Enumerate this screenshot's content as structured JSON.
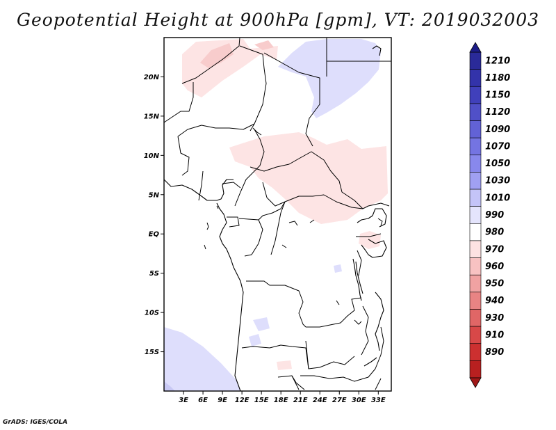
{
  "title": "Geopotential Height at 900hPa [gpm], VT: 2019032003",
  "credit": "GrADS: IGES/COLA",
  "map": {
    "lat_labels": [
      "20N",
      "15N",
      "10N",
      "5N",
      "EQ",
      "5S",
      "10S",
      "15S"
    ],
    "lat_values": [
      20,
      15,
      10,
      5,
      0,
      -5,
      -10,
      -15
    ],
    "lon_labels": [
      "3E",
      "6E",
      "9E",
      "12E",
      "15E",
      "18E",
      "21E",
      "24E",
      "27E",
      "30E",
      "33E"
    ],
    "lon_values": [
      3,
      6,
      9,
      12,
      15,
      18,
      21,
      24,
      27,
      30,
      33
    ],
    "extent": {
      "lon_min": 0,
      "lon_max": 35,
      "lat_min": -20,
      "lat_max": 25
    }
  },
  "colorbar": {
    "labels": [
      "1210",
      "1180",
      "1150",
      "1120",
      "1090",
      "1070",
      "1050",
      "1030",
      "1010",
      "990",
      "980",
      "970",
      "960",
      "950",
      "940",
      "930",
      "910",
      "890"
    ],
    "colors": [
      "#2a2a99",
      "#3333aa",
      "#4040bb",
      "#5050c8",
      "#6262d6",
      "#7474e2",
      "#8888ec",
      "#a0a0f2",
      "#c4c4f8",
      "#e4e4fc",
      "#ffffff",
      "#fde2e2",
      "#f8c2c2",
      "#f0a2a2",
      "#e88484",
      "#e06666",
      "#d84848",
      "#cc3030",
      "#b82020"
    ],
    "top_arrow_color": "#1c1c88",
    "bottom_arrow_color": "#a01818"
  }
}
